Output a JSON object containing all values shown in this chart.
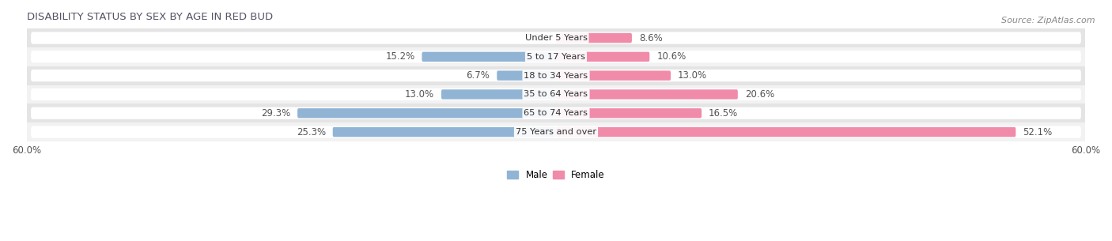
{
  "title": "DISABILITY STATUS BY SEX BY AGE IN RED BUD",
  "source": "Source: ZipAtlas.com",
  "categories": [
    "Under 5 Years",
    "5 to 17 Years",
    "18 to 34 Years",
    "35 to 64 Years",
    "65 to 74 Years",
    "75 Years and over"
  ],
  "male_values": [
    0.0,
    15.2,
    6.7,
    13.0,
    29.3,
    25.3
  ],
  "female_values": [
    8.6,
    10.6,
    13.0,
    20.6,
    16.5,
    52.1
  ],
  "male_color": "#92b4d4",
  "female_color": "#f08baa",
  "row_bg_light": "#f2f2f2",
  "row_bg_dark": "#e4e4e4",
  "row_inner_color": "#ffffff",
  "axis_max": 60.0,
  "bar_height": 0.52,
  "label_fontsize": 8.5,
  "title_fontsize": 9.5,
  "source_fontsize": 8,
  "title_color": "#555566",
  "label_color": "#555555"
}
